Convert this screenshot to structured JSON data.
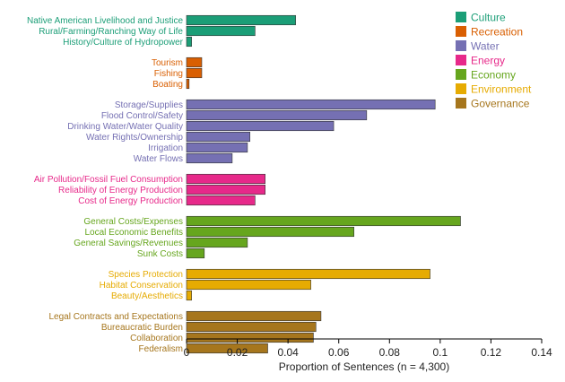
{
  "chart_data": {
    "type": "bar",
    "orientation": "horizontal",
    "xlabel": "Proportion of Sentences (n = 4,300)",
    "xlim": [
      0,
      0.14
    ],
    "xticks": [
      0,
      0.02,
      0.04,
      0.06,
      0.08,
      0.1,
      0.12,
      0.14
    ],
    "xtick_labels": [
      "0",
      "0.02",
      "0.04",
      "0.06",
      "0.08",
      "0.1",
      "0.12",
      "0.14"
    ],
    "grid": false,
    "legend_position": "top-right",
    "groups": [
      {
        "name": "Culture",
        "color": "#1b9e77",
        "categories": [
          "Native American Livelihood and Justice",
          "Rural/Farming/Ranching Way of Life",
          "History/Culture of Hydropower"
        ],
        "values": [
          0.043,
          0.027,
          0.002
        ]
      },
      {
        "name": "Recreation",
        "color": "#d95f02",
        "categories": [
          "Tourism",
          "Fishing",
          "Boating"
        ],
        "values": [
          0.006,
          0.006,
          0.001
        ]
      },
      {
        "name": "Water",
        "color": "#7570b3",
        "categories": [
          "Storage/Supplies",
          "Flood Control/Safety",
          "Drinking Water/Water Quality",
          "Water Rights/Ownership",
          "Irrigation",
          "Water Flows"
        ],
        "values": [
          0.098,
          0.071,
          0.058,
          0.025,
          0.024,
          0.018
        ]
      },
      {
        "name": "Energy",
        "color": "#e7298a",
        "categories": [
          "Air Pollution/Fossil Fuel Consumption",
          "Reliability of Energy Production",
          "Cost of Energy Production"
        ],
        "values": [
          0.031,
          0.031,
          0.027
        ]
      },
      {
        "name": "Economy",
        "color": "#66a61e",
        "categories": [
          "General Costs/Expenses",
          "Local Economic Benefits",
          "General Savings/Revenues",
          "Sunk Costs"
        ],
        "values": [
          0.108,
          0.066,
          0.024,
          0.007
        ]
      },
      {
        "name": "Environment",
        "color": "#e6ab02",
        "categories": [
          "Species Protection",
          "Habitat Conservation",
          "Beauty/Aesthetics"
        ],
        "values": [
          0.096,
          0.049,
          0.002
        ]
      },
      {
        "name": "Governance",
        "color": "#a6761d",
        "categories": [
          "Legal Contracts and Expectations",
          "Bureaucratic Burden",
          "Collaboration",
          "Federalism"
        ],
        "values": [
          0.053,
          0.051,
          0.05,
          0.032
        ]
      }
    ]
  }
}
